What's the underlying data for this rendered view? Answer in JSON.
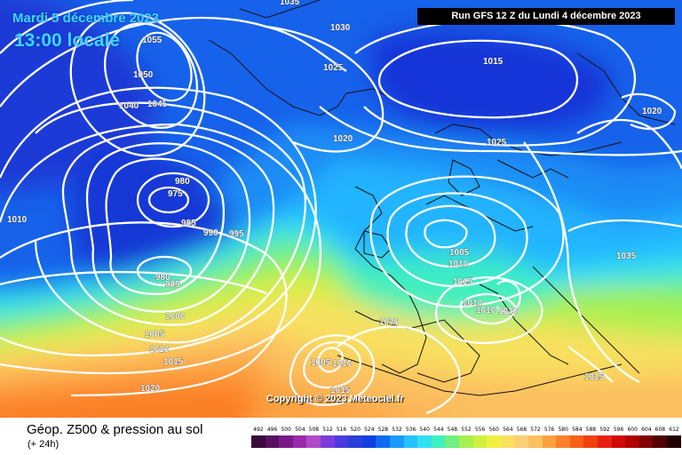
{
  "map": {
    "date_label": "Mardi 5 décembre 2023",
    "time_label": "13:00 locale",
    "run_label": "Run GFS 12 Z du Lundi 4 décembre 2023",
    "copyright": "Copyright © 2023 Meteociel.fr",
    "isobar_labels": [
      "1055",
      "1050",
      "1040",
      "1045",
      "1035",
      "1030",
      "1025",
      "1020",
      "1015",
      "1020",
      "980",
      "975",
      "985",
      "990",
      "995",
      "980",
      "985",
      "1000",
      "1005",
      "1010",
      "1015",
      "1020",
      "1010",
      "1005",
      "1010",
      "1015",
      "1010",
      "1010",
      "1010",
      "1020",
      "1025",
      "1005",
      "1010",
      "1015",
      "1015",
      "1035"
    ]
  },
  "footer": {
    "title": "Géop. Z500 & pression au sol",
    "subtitle": "(+ 24h)"
  },
  "legend": {
    "values": [
      "492",
      "496",
      "500",
      "504",
      "508",
      "512",
      "516",
      "520",
      "524",
      "528",
      "532",
      "536",
      "540",
      "544",
      "548",
      "552",
      "556",
      "560",
      "564",
      "568",
      "572",
      "576",
      "580",
      "584",
      "588",
      "592",
      "596",
      "600",
      "604",
      "608",
      "612"
    ],
    "colors": [
      "#3a0a3a",
      "#5a1060",
      "#7a1a8a",
      "#9a2aaa",
      "#b04ac8",
      "#7a3cdc",
      "#4a3cdc",
      "#2840d8",
      "#1040e0",
      "#0f6cf0",
      "#1a9aff",
      "#28c0ff",
      "#30e0f0",
      "#40f0c0",
      "#70f080",
      "#a8f050",
      "#d0f040",
      "#f0f040",
      "#f8e060",
      "#fcd070",
      "#fcc060",
      "#fca040",
      "#fc8028",
      "#f86018",
      "#f04010",
      "#e82010",
      "#d00808",
      "#b00000",
      "#800000",
      "#500000",
      "#200000"
    ]
  }
}
